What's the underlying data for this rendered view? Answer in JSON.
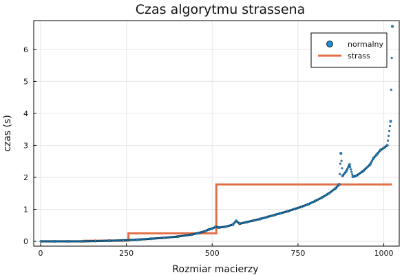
{
  "chart_data": {
    "type": "scatter",
    "title": "Czas algorytmu strassena",
    "xlabel": "Rozmiar macierzy",
    "ylabel": "czas (s)",
    "xlim": [
      -20,
      1045
    ],
    "ylim": [
      -0.15,
      6.9
    ],
    "xticks": [
      0,
      250,
      500,
      750,
      1000
    ],
    "yticks": [
      0,
      1,
      2,
      3,
      4,
      5,
      6
    ],
    "grid": true,
    "legend_position": "top-right",
    "series": [
      {
        "name": "normalny",
        "kind": "scatter",
        "color": "#1f8fd6",
        "edge_color": "#000000",
        "points": [
          [
            1,
            0
          ],
          [
            40,
            0
          ],
          [
            80,
            0
          ],
          [
            120,
            0
          ],
          [
            160,
            0.01
          ],
          [
            200,
            0.02
          ],
          [
            240,
            0.03
          ],
          [
            280,
            0.05
          ],
          [
            320,
            0.08
          ],
          [
            360,
            0.11
          ],
          [
            400,
            0.15
          ],
          [
            440,
            0.21
          ],
          [
            460,
            0.26
          ],
          [
            480,
            0.32
          ],
          [
            490,
            0.37
          ],
          [
            500,
            0.4
          ],
          [
            510,
            0.45
          ],
          [
            520,
            0.43
          ],
          [
            540,
            0.46
          ],
          [
            560,
            0.52
          ],
          [
            570,
            0.64
          ],
          [
            580,
            0.55
          ],
          [
            600,
            0.6
          ],
          [
            620,
            0.65
          ],
          [
            640,
            0.7
          ],
          [
            660,
            0.76
          ],
          [
            680,
            0.82
          ],
          [
            700,
            0.88
          ],
          [
            720,
            0.94
          ],
          [
            740,
            1.01
          ],
          [
            760,
            1.08
          ],
          [
            780,
            1.16
          ],
          [
            800,
            1.26
          ],
          [
            820,
            1.37
          ],
          [
            840,
            1.5
          ],
          [
            860,
            1.66
          ],
          [
            870,
            1.78
          ],
          [
            875,
            2.75
          ],
          [
            880,
            2.05
          ],
          [
            890,
            2.18
          ],
          [
            900,
            2.4
          ],
          [
            910,
            2.02
          ],
          [
            920,
            2.05
          ],
          [
            940,
            2.2
          ],
          [
            960,
            2.4
          ],
          [
            970,
            2.6
          ],
          [
            980,
            2.72
          ],
          [
            990,
            2.85
          ],
          [
            1000,
            2.92
          ],
          [
            1010,
            3.0
          ],
          [
            1020,
            3.75
          ],
          [
            1025,
            6.72
          ]
        ]
      },
      {
        "name": "strass",
        "kind": "step",
        "color": "#e26f46",
        "steps": [
          [
            1,
            0.0
          ],
          [
            128,
            0.02
          ],
          [
            256,
            0.25
          ],
          [
            512,
            1.78
          ],
          [
            1024,
            1.78
          ]
        ]
      }
    ]
  }
}
